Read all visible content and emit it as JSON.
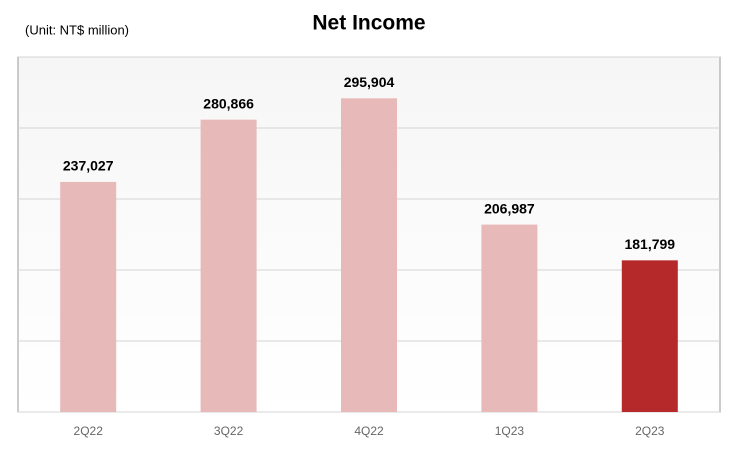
{
  "chart_data": {
    "type": "bar",
    "title": "Net Income",
    "subtitle": "(Unit: NT$ million)",
    "categories": [
      "2Q22",
      "3Q22",
      "4Q22",
      "1Q23",
      "2Q23"
    ],
    "values": [
      237027,
      280866,
      295904,
      206987,
      181799
    ],
    "value_labels": [
      "237,027",
      "280,866",
      "295,904",
      "206,987",
      "181,799"
    ],
    "colors": [
      "#e8b9b9",
      "#e8b9b9",
      "#e8b9b9",
      "#e8b9b9",
      "#b5292b"
    ],
    "ylim": [
      75000,
      325000
    ],
    "yticks": [
      75000,
      125000,
      175000,
      225000,
      275000,
      325000
    ],
    "grid": true
  }
}
